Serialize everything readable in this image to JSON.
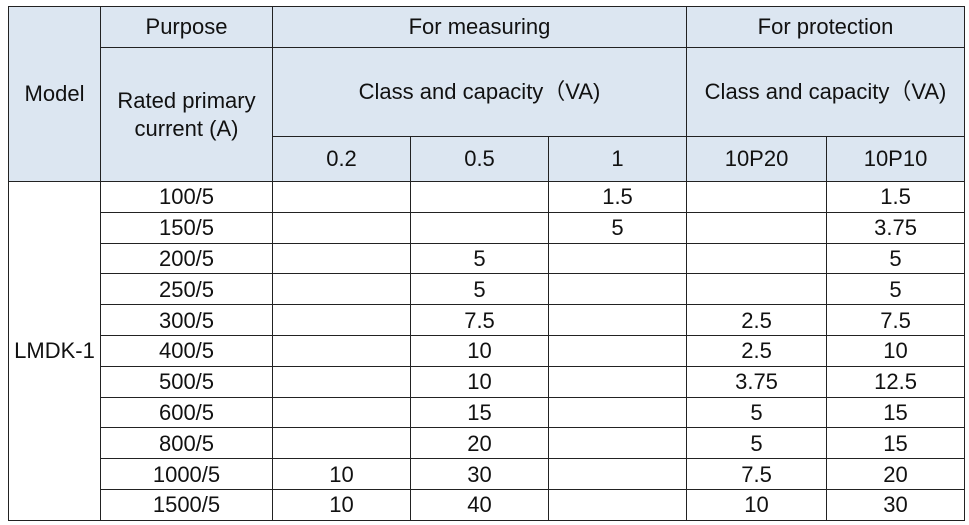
{
  "table": {
    "header": {
      "model": "Model",
      "purpose": "Purpose",
      "measuring": "For measuring",
      "protection": "For protection",
      "rated": "Rated primary current (A)",
      "measuring_class": "Class and capacity（VA)",
      "protection_class": "Class and capacity（VA)",
      "classes": [
        "0.2",
        "0.5",
        "1",
        "10P20",
        "10P10"
      ]
    },
    "model": "LMDK-1",
    "rows": [
      {
        "current": "100/5",
        "values": [
          null,
          null,
          1.5,
          null,
          1.5
        ]
      },
      {
        "current": "150/5",
        "values": [
          null,
          null,
          5,
          null,
          3.75
        ]
      },
      {
        "current": "200/5",
        "values": [
          null,
          5,
          null,
          null,
          5
        ]
      },
      {
        "current": "250/5",
        "values": [
          null,
          5,
          null,
          null,
          5
        ]
      },
      {
        "current": "300/5",
        "values": [
          null,
          7.5,
          null,
          2.5,
          7.5
        ]
      },
      {
        "current": "400/5",
        "values": [
          null,
          10,
          null,
          2.5,
          10
        ]
      },
      {
        "current": "500/5",
        "values": [
          null,
          10,
          null,
          3.75,
          12.5
        ]
      },
      {
        "current": "600/5",
        "values": [
          null,
          15,
          null,
          5,
          15
        ]
      },
      {
        "current": "800/5",
        "values": [
          null,
          20,
          null,
          5,
          15
        ]
      },
      {
        "current": "1000/5",
        "values": [
          10,
          30,
          null,
          7.5,
          20
        ]
      },
      {
        "current": "1500/5",
        "values": [
          10,
          40,
          null,
          10,
          30
        ]
      }
    ]
  }
}
